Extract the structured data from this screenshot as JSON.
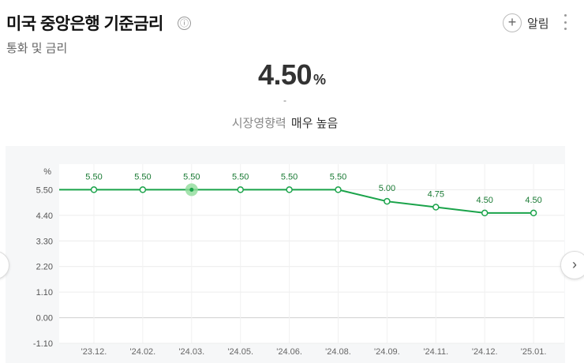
{
  "header": {
    "title": "미국 중앙은행 기준금리",
    "subtitle": "통화 및 금리",
    "info_icon": "ⓘ",
    "alarm_label": "알림"
  },
  "summary": {
    "value": "4.50",
    "unit": "%",
    "dash": "-",
    "impact_label": "시장영향력",
    "impact_value": "매우 높음"
  },
  "colors": {
    "line": "#1aa34a",
    "highlight": "#8fdc9a"
  },
  "icons": [
    "info-icon",
    "plus-icon",
    "more-vertical-icon",
    "chevron-left-icon",
    "chevron-right-icon"
  ],
  "chart_data": {
    "type": "line",
    "unit_label": "%",
    "ylim": [
      -1.1,
      6.6
    ],
    "y_ticks": [
      "5.50",
      "4.40",
      "3.30",
      "2.20",
      "1.10",
      "0.00",
      "-1.10"
    ],
    "categories": [
      "'23.12.",
      "'24.02.",
      "'24.03.",
      "'24.05.",
      "'24.06.",
      "'24.08.",
      "'24.09.",
      "'24.11.",
      "'24.12.",
      "'25.01."
    ],
    "values": [
      5.5,
      5.5,
      5.5,
      5.5,
      5.5,
      5.5,
      5.0,
      4.75,
      4.5,
      4.5
    ],
    "labels": [
      "5.50",
      "5.50",
      "5.50",
      "5.50",
      "5.50",
      "5.50",
      "5.00",
      "4.75",
      "4.50",
      "4.50"
    ],
    "highlighted_index": 2,
    "grid": true
  }
}
